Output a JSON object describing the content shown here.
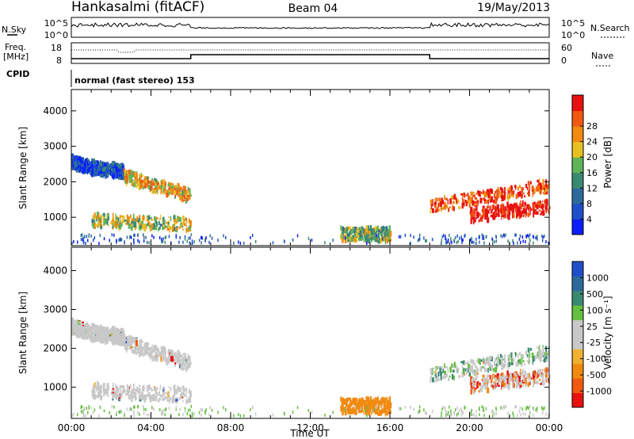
{
  "header": {
    "station": "Hankasalmi (fitACF)",
    "beam": "Beam 04",
    "date": "19/May/2013",
    "cpid_label": "CPID",
    "cpid_value": "normal (fast stereo) 153"
  },
  "noise_panel": {
    "left_label": "N.Sky",
    "left_ticks": [
      "10^5",
      "10^0"
    ],
    "right_label": "N.Search",
    "right_ticks": [
      "10^5",
      "10^0"
    ]
  },
  "freq_panel": {
    "left_label_1": "Freq.",
    "left_label_2": "[MHz]",
    "left_ticks": [
      "18",
      "8"
    ],
    "right_label": "Nave",
    "right_ticks": [
      "60",
      "0"
    ]
  },
  "colors": {
    "power_scale": [
      "#0a1eff",
      "#1f4fc9",
      "#2c6a9c",
      "#3a8a72",
      "#5fb45a",
      "#e6c020",
      "#f08a10",
      "#f05a10",
      "#e81010"
    ],
    "velocity_scale": [
      "#e81010",
      "#f05a10",
      "#f08a10",
      "#f0b030",
      "#c8c8c8",
      "#c8c8c8",
      "#66c040",
      "#3a8a72",
      "#2c6a9c",
      "#1f4fc9"
    ]
  },
  "chart_data": [
    {
      "type": "heatmap",
      "name": "power",
      "ylabel": "Slant Range [km]",
      "yticks": [
        "1000",
        "2000",
        "3000",
        "4000"
      ],
      "ylim": [
        200,
        4600
      ],
      "colorbar_label": "Power [dB]",
      "colorbar_ticks": [
        "4",
        "8",
        "12",
        "16",
        "20",
        "24",
        "28"
      ],
      "features": [
        {
          "t": [
            0.0,
            1.4
          ],
          "r": [
            2550,
            2350
          ],
          "level": 0.15
        },
        {
          "t": [
            1.4,
            2.6
          ],
          "r": [
            2350,
            2300
          ],
          "level": 0.2
        },
        {
          "t": [
            2.6,
            6.0
          ],
          "r": [
            2150,
            1600
          ],
          "level": 0.65
        },
        {
          "t": [
            1.0,
            6.0
          ],
          "r": [
            900,
            800
          ],
          "level": 0.55
        },
        {
          "t": [
            13.5,
            16.0
          ],
          "r": [
            520,
            500
          ],
          "level": 0.5
        },
        {
          "t": [
            18.0,
            24.0
          ],
          "r": [
            1300,
            1900
          ],
          "level": 0.85
        },
        {
          "t": [
            20.0,
            24.0
          ],
          "r": [
            1050,
            1300
          ],
          "level": 1.0
        }
      ]
    },
    {
      "type": "heatmap",
      "name": "velocity",
      "ylabel": "Slant Range [km]",
      "yticks": [
        "1000",
        "2000",
        "3000",
        "4000"
      ],
      "ylim": [
        200,
        4600
      ],
      "colorbar_label": "Velocity [m s⁻¹]",
      "colorbar_ticks": [
        "1000",
        "500",
        "100",
        "25",
        "-25",
        "-100",
        "-500",
        "-1000"
      ],
      "x_ticks": [
        "00:00",
        "04:00",
        "08:00",
        "12:00",
        "16:00",
        "20:00",
        "00:00"
      ],
      "xlabel": "Time UT",
      "xlim": [
        0,
        24
      ]
    }
  ]
}
